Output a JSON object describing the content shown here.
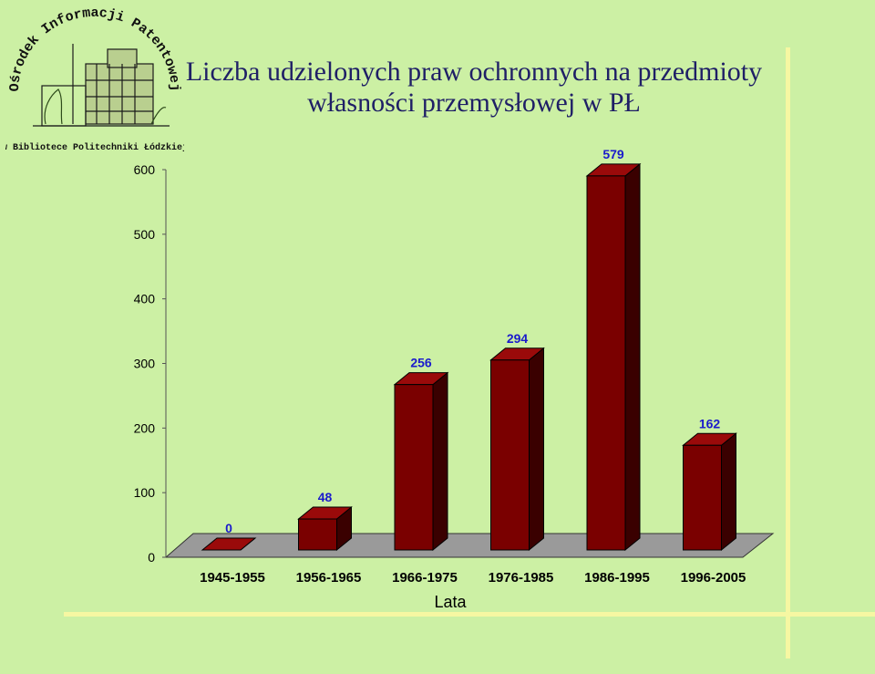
{
  "title": "Liczba udzielonych praw ochronnych na przedmioty własności przemysłowej w PŁ",
  "logo": {
    "arc_text": "Ośrodek Informacji Patentowej",
    "sub_text": "w Bibliotece Politechniki Łódzkiej"
  },
  "chart_data": {
    "type": "bar",
    "title": "Liczba udzielonych praw ochronnych na przedmioty własności przemysłowej w PŁ",
    "categories": [
      "1945-1955",
      "1956-1965",
      "1966-1975",
      "1976-1985",
      "1986-1995",
      "1996-2005"
    ],
    "values": [
      0,
      48,
      256,
      294,
      579,
      162
    ],
    "xlabel": "Lata",
    "ylabel": "",
    "ylim": [
      0,
      600
    ],
    "yticks": [
      0,
      100,
      200,
      300,
      400,
      500,
      600
    ],
    "grid": false,
    "legend": "none",
    "three_d": true,
    "colors": {
      "bar_front": "#7a0000",
      "bar_top": "#9a0a0a",
      "bar_side": "#3a0000",
      "floor": "#9a9a9a",
      "data_label": "#1a1acc"
    }
  }
}
